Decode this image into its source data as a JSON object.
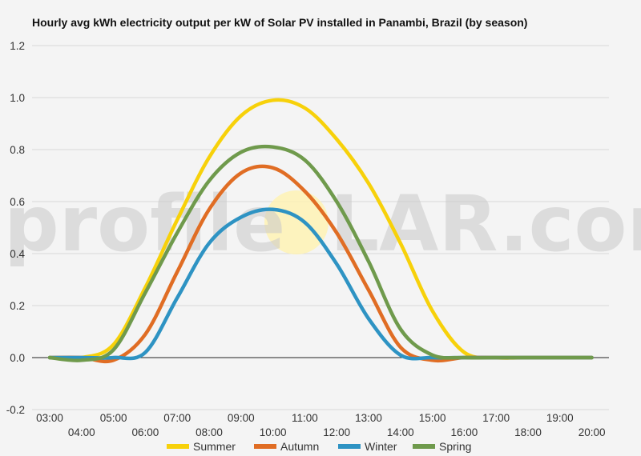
{
  "colors": {
    "background": "#f4f4f4",
    "gridline": "#d9d9d9",
    "zeroline": "#222222",
    "summer": "#f7d10a",
    "autumn": "#e06d24",
    "winter": "#2e93c3",
    "spring": "#6f9a4c",
    "sun": "#fff2b0"
  },
  "watermark": {
    "left": "profile",
    "right": "LAR.com",
    "sun": "S"
  },
  "chart_data": {
    "type": "line",
    "title": "Hourly avg kWh electricity output per kW of Solar PV installed in Panambi, Brazil (by season)",
    "xlabel": "",
    "ylabel": "",
    "categories": [
      "03:00",
      "04:00",
      "05:00",
      "06:00",
      "07:00",
      "08:00",
      "09:00",
      "10:00",
      "11:00",
      "12:00",
      "13:00",
      "14:00",
      "15:00",
      "16:00",
      "17:00",
      "18:00",
      "19:00",
      "20:00"
    ],
    "ylim": [
      -0.2,
      1.2
    ],
    "yticks": [
      "-0.2",
      "0.0",
      "0.2",
      "0.4",
      "0.6",
      "0.8",
      "1.0",
      "1.2"
    ],
    "grid": true,
    "legend_position": "bottom",
    "series": [
      {
        "name": "Summer",
        "color_key": "summer",
        "values": [
          0,
          0,
          0.05,
          0.27,
          0.53,
          0.77,
          0.93,
          0.99,
          0.96,
          0.84,
          0.67,
          0.44,
          0.18,
          0.02,
          0,
          0,
          0,
          0
        ]
      },
      {
        "name": "Autumn",
        "color_key": "autumn",
        "values": [
          0,
          0,
          -0.01,
          0.09,
          0.33,
          0.57,
          0.71,
          0.73,
          0.64,
          0.48,
          0.26,
          0.04,
          -0.01,
          0,
          0,
          0,
          0,
          0
        ]
      },
      {
        "name": "Winter",
        "color_key": "winter",
        "values": [
          0,
          0,
          0,
          0.02,
          0.23,
          0.44,
          0.54,
          0.57,
          0.52,
          0.36,
          0.15,
          0.01,
          0,
          0,
          0,
          0,
          0,
          0
        ]
      },
      {
        "name": "Spring",
        "color_key": "spring",
        "values": [
          0,
          -0.01,
          0.03,
          0.25,
          0.48,
          0.68,
          0.79,
          0.81,
          0.76,
          0.6,
          0.37,
          0.11,
          0.01,
          0,
          0,
          0,
          0,
          0
        ]
      }
    ]
  }
}
